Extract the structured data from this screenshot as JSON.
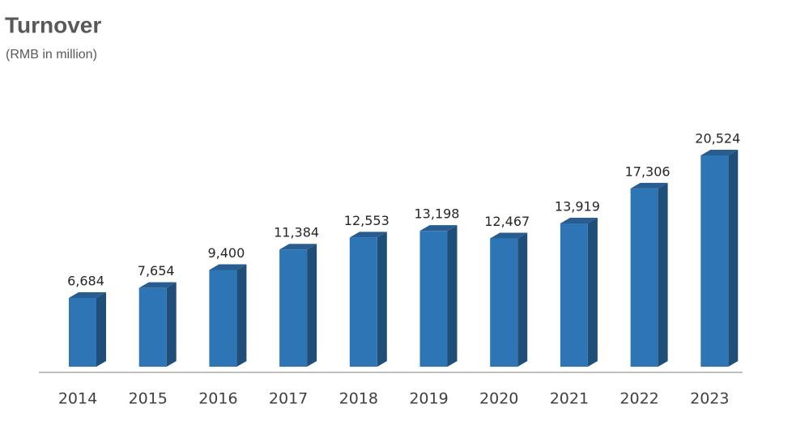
{
  "chart_data": {
    "type": "bar3d",
    "title": "Turnover",
    "subtitle": "(RMB in million)",
    "categories": [
      "2014",
      "2015",
      "2016",
      "2017",
      "2018",
      "2019",
      "2020",
      "2021",
      "2022",
      "2023"
    ],
    "values": [
      6684,
      7654,
      9400,
      11384,
      12553,
      13198,
      12467,
      13919,
      17306,
      20524
    ],
    "value_labels": [
      "6,684",
      "7,654",
      "9,400",
      "11,384",
      "12,553",
      "13,198",
      "12,467",
      "13,919",
      "17,306",
      "20,524"
    ],
    "color": "#2e75b6"
  }
}
